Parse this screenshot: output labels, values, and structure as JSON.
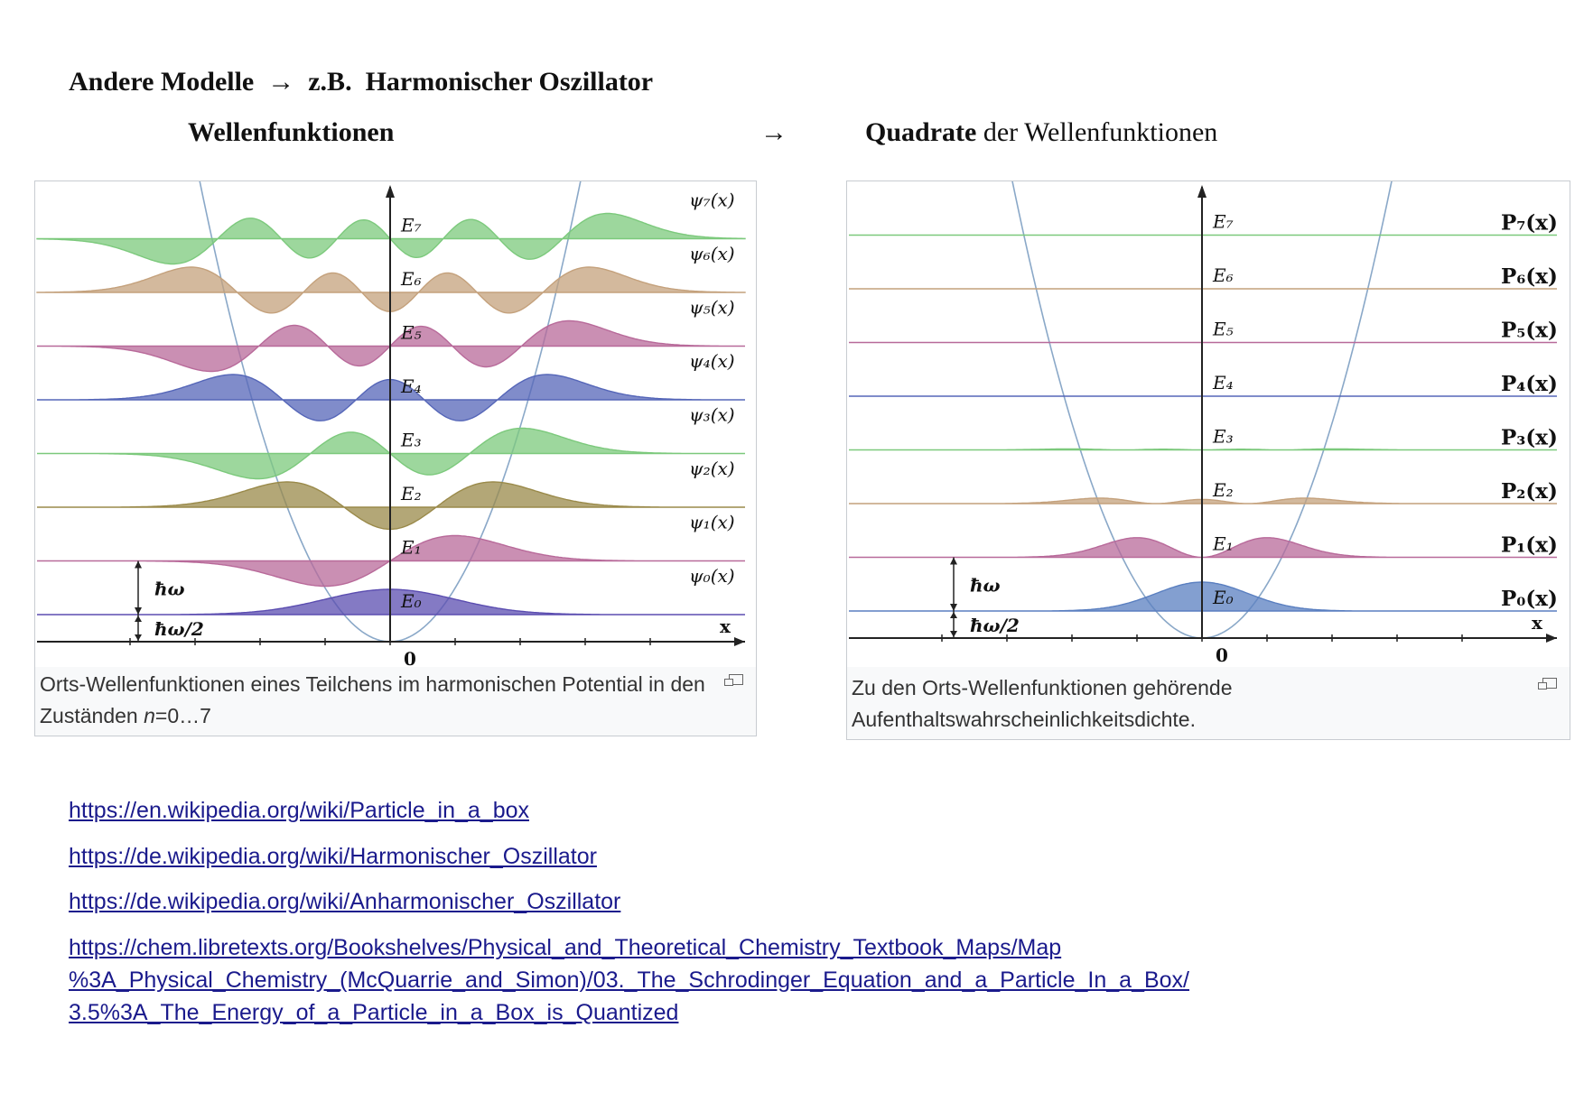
{
  "heading": {
    "title": "Andere Modelle  →  z.B.  Harmonischer Oszillator",
    "left_label": "Wellenfunktionen",
    "arrow": "→",
    "right_label_bold": "Quadrate",
    "right_label_rest": " der Wellenfunktionen"
  },
  "figure_left": {
    "energy_labels": [
      "E₇",
      "E₆",
      "E₅",
      "E₄",
      "E₃",
      "E₂",
      "E₁",
      "E₀"
    ],
    "psi_labels": [
      "ψ₇(x)",
      "ψ₆(x)",
      "ψ₅(x)",
      "ψ₄(x)",
      "ψ₃(x)",
      "ψ₂(x)",
      "ψ₁(x)",
      "ψ₀(x)"
    ],
    "hbar_omega": "ħω",
    "hbar_omega_half": "ħω/2",
    "x_label": "x",
    "origin_label": "0",
    "caption_text": "Orts-Wellenfunktionen eines Teilchens im harmonischen Potential in den Zuständen ",
    "caption_n": "n",
    "caption_range": "=0…7"
  },
  "figure_right": {
    "energy_labels": [
      "E₇",
      "E₆",
      "E₅",
      "E₄",
      "E₃",
      "E₂",
      "E₁",
      "E₀"
    ],
    "p_labels": [
      "P₇(x)",
      "P₆(x)",
      "P₅(x)",
      "P₄(x)",
      "P₃(x)",
      "P₂(x)",
      "P₁(x)",
      "P₀(x)"
    ],
    "hbar_omega": "ħω",
    "hbar_omega_half": "ħω/2",
    "x_label": "x",
    "origin_label": "0",
    "caption": "Zu den Orts-Wellenfunktionen gehörende Aufenthaltswahrscheinlichkeitsdichte."
  },
  "colors": {
    "levels": [
      "#7cc97c",
      "#c4a17c",
      "#b86a9a",
      "#5566b8",
      "#7cc97c",
      "#9a8a4a",
      "#b86a9a",
      "#5b4db0"
    ],
    "levels_right": [
      "#7cc97c",
      "#c4a17c",
      "#b86a9a",
      "#5566b8",
      "#7cc97c",
      "#c4a17c",
      "#b86a9a",
      "#5a7fc0"
    ],
    "potential": "#8aa8c8",
    "link": "#1a1a8c"
  },
  "links": [
    "https://en.wikipedia.org/wiki/Particle_in_a_box",
    "https://de.wikipedia.org/wiki/Harmonischer_Oszillator",
    "https://de.wikipedia.org/wiki/Anharmonischer_Oszillator"
  ],
  "long_link": {
    "line1": "https://chem.libretexts.org/Bookshelves/Physical_and_Theoretical_Chemistry_Textbook_Maps/Map",
    "line2": "%3A_Physical_Chemistry_(McQuarrie_and_Simon)/03._The_Schrodinger_Equation_and_a_Particle_In_a_Box/",
    "line3": "3.5%3A_The_Energy_of_a_Particle_in_a_Box_is_Quantized"
  }
}
